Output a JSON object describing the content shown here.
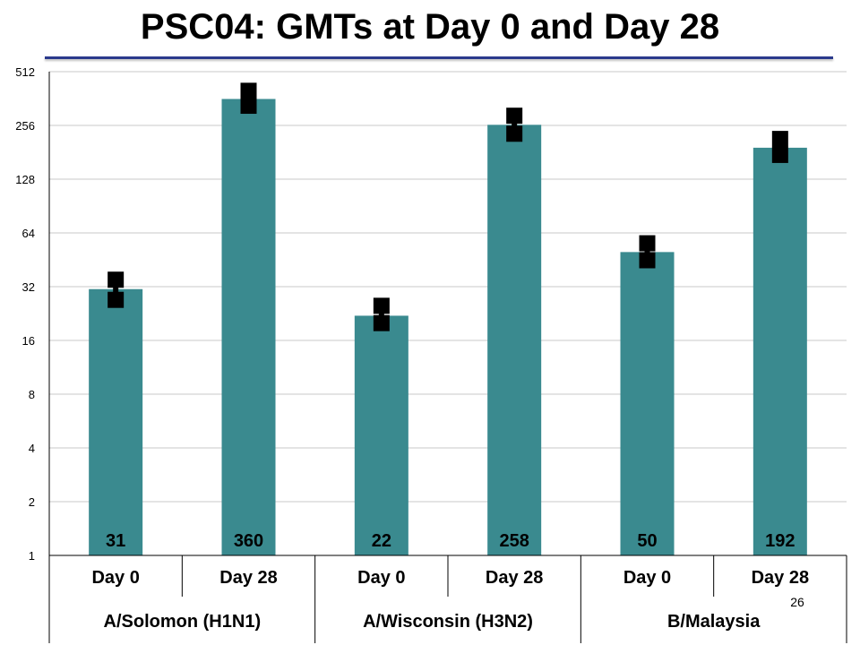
{
  "slide": {
    "title": "PSC04:  GMTs at Day 0 and Day 28",
    "page_number": "26"
  },
  "colors": {
    "bar": "#3a8a8f",
    "error_marker": "#000000",
    "gridline": "#c8c8c8",
    "title_rule": "#2b3a8c"
  },
  "chart_data": {
    "type": "bar",
    "title": "PSC04:  GMTs at Day 0 and Day 28",
    "y_scale": "log2",
    "ylim": [
      1,
      512
    ],
    "y_ticks": [
      "1",
      "2",
      "4",
      "8",
      "16",
      "32",
      "64",
      "128",
      "256",
      "512"
    ],
    "grid": true,
    "categories": [
      "Day 0",
      "Day 28",
      "Day 0",
      "Day 28",
      "Day 0",
      "Day 28"
    ],
    "groups": [
      {
        "label": "A/Solomon (H1N1)",
        "span": 2
      },
      {
        "label": "A/Wisconsin (H3N2)",
        "span": 2
      },
      {
        "label": "B/Malaysia",
        "span": 2
      }
    ],
    "values": [
      31,
      360,
      22,
      258,
      50,
      192
    ],
    "data_labels": [
      "31",
      "360",
      "22",
      "258",
      "50",
      "192"
    ],
    "error_bars": [
      {
        "low": 27,
        "high": 35
      },
      {
        "low": 330,
        "high": 400
      },
      {
        "low": 20,
        "high": 25
      },
      {
        "low": 230,
        "high": 290
      },
      {
        "low": 45,
        "high": 56
      },
      {
        "low": 175,
        "high": 215
      }
    ]
  }
}
